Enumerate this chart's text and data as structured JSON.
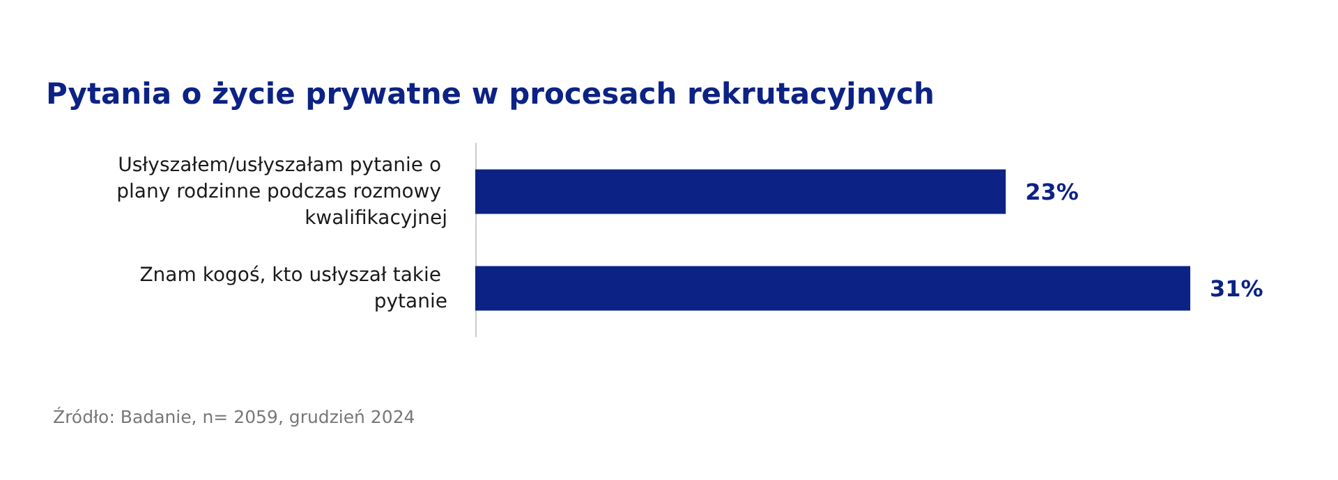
{
  "chart_data": {
    "type": "bar",
    "orientation": "horizontal",
    "title": "Pytania o życie prywatne w procesach rekrutacyjnych",
    "categories": [
      "Usłyszałem/usłyszałam pytanie o plany rodzinne podczas rozmowy kwalifikacyjnej",
      "Znam kogoś, kto usłyszał takie pytanie"
    ],
    "values": [
      23,
      31
    ],
    "color": "#0c2284",
    "value_labels": [
      "23%",
      "31%"
    ],
    "grid": false,
    "annotations": [
      "Źródło: Badanie, n= 2059, grudzień 2024"
    ]
  }
}
